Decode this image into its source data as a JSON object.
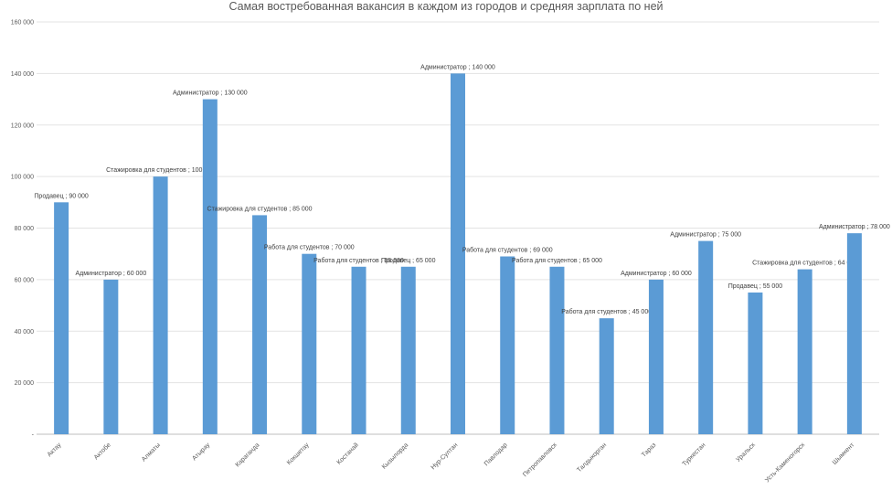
{
  "chart_data": {
    "type": "bar",
    "title": "Самая востребованная вакансия в каждом из городов и средняя зарплата по ней",
    "xlabel": "",
    "ylabel": "",
    "ylim": [
      0,
      160000
    ],
    "y_ticks": [
      "-",
      "20 000",
      "40 000",
      "60 000",
      "80 000",
      "100 000",
      "120 000",
      "140 000",
      "160 000"
    ],
    "grid": true,
    "bar_color": "#5b9bd5",
    "categories": [
      "Актау",
      "Актобе",
      "Алматы",
      "Атырау",
      "Караганда",
      "Кокшетау",
      "Костанай",
      "Кызылорда",
      "Нур-Султан",
      "Павлодар",
      "Петропавловск",
      "Талдыкорган",
      "Тараз",
      "Туркестан",
      "Уральск",
      "Усть-Каменогорск",
      "Шымкент"
    ],
    "values": [
      90000,
      60000,
      100000,
      130000,
      85000,
      70000,
      65000,
      65000,
      140000,
      69000,
      65000,
      45000,
      60000,
      75000,
      55000,
      64000,
      78000
    ],
    "data_labels": [
      "Продавец ; 90 000",
      "Администратор ; 60 000",
      "Стажировка для студентов ; 100 000",
      "Администратор ; 130 000",
      "Стажировка для студентов ; 85 000",
      "Работа для студентов ; 70 000",
      "Работа для студентов ; 65 000",
      "Продавец ; 65 000",
      "Администратор ; 140 000",
      "Работа для студентов ; 69 000",
      "Работа для студентов ; 65 000",
      "Работа для студентов ; 45 000",
      "Администратор ; 60 000",
      "Администратор ; 75 000",
      "Продавец ; 55 000",
      "Стажировка для студентов ; 64 000",
      "Администратор ; 78 000"
    ]
  }
}
